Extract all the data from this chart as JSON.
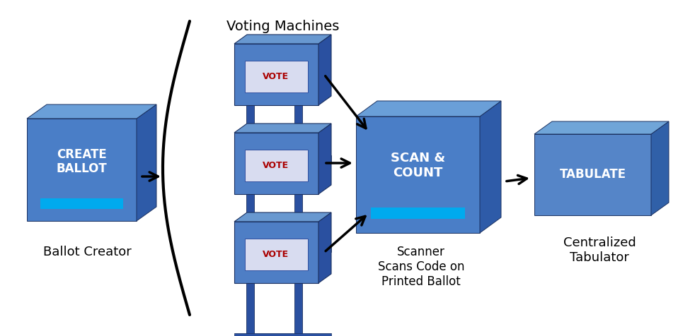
{
  "bg_color": "#ffffff",
  "face_color_box": "#4A7EC7",
  "side_color_box": "#2E5BA8",
  "top_color_box": "#6A9FD8",
  "face_color_scan": "#4A7EC7",
  "side_color_scan": "#2E5BA8",
  "top_color_scan": "#6A9FD8",
  "face_color_tab": "#5585C8",
  "side_color_tab": "#3060A8",
  "top_color_tab": "#70A5D8",
  "vm_face": "#4E7EC5",
  "vm_side": "#2A50A0",
  "vm_top": "#6898D0",
  "vm_vote_bg": "#D8DCF0",
  "cyan_bar": "#00AAEE",
  "red_vote": "#AA0000",
  "black": "#000000",
  "white": "#FFFFFF",
  "create_ballot_text": "CREATE\nBALLOT",
  "scan_count_text": "SCAN &\nCOUNT",
  "tabulate_text": "TABULATE",
  "vote_text": "VOTE",
  "voting_machines_label": "Voting Machines",
  "ballot_creator_label": "Ballot Creator",
  "scanner_label": "Scanner\nScans Code on\nPrinted Ballot",
  "tabulator_label": "Centralized\nTabulator",
  "figw": 9.58,
  "figh": 4.76,
  "dpi": 100
}
